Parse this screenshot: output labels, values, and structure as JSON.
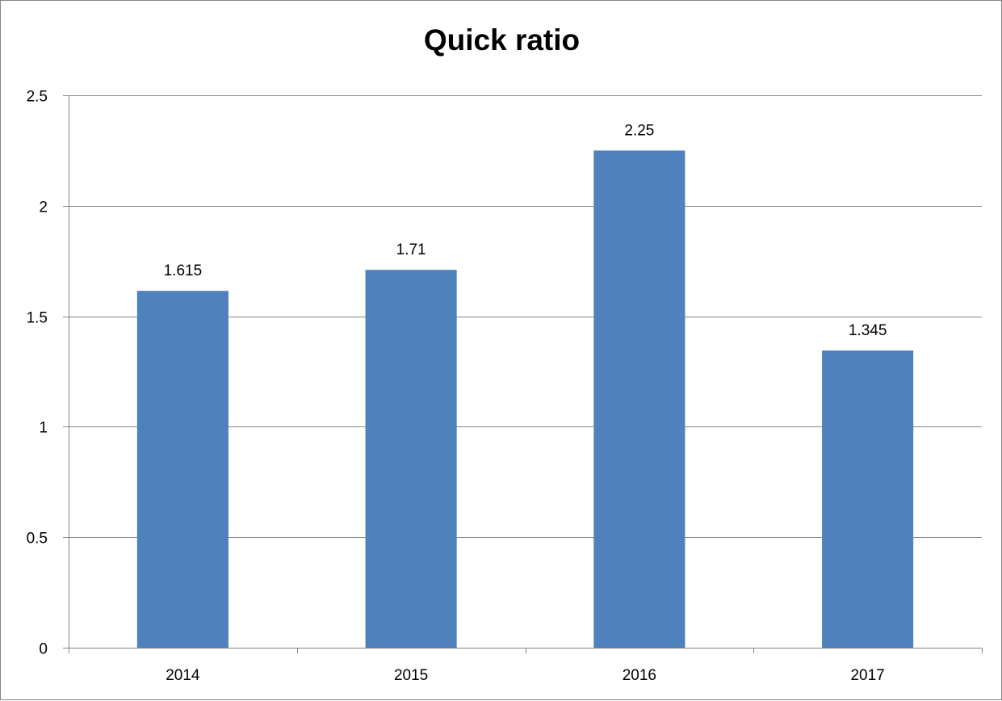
{
  "chart_data": {
    "type": "bar",
    "title": "Quick ratio",
    "xlabel": "",
    "ylabel": "",
    "categories": [
      "2014",
      "2015",
      "2016",
      "2017"
    ],
    "values": [
      1.615,
      1.71,
      2.25,
      1.345
    ],
    "data_labels": [
      "1.615",
      "1.71",
      "2.25",
      "1.345"
    ],
    "ylim": [
      0,
      2.5
    ],
    "yticks": [
      0,
      0.5,
      1,
      1.5,
      2,
      2.5
    ],
    "ytick_labels": [
      "0",
      "0.5",
      "1",
      "1.5",
      "2",
      "2.5"
    ],
    "grid": true,
    "legend": "none",
    "bar_color": "#4f81bd",
    "gridline_color": "#868686",
    "axis_color": "#868686"
  }
}
